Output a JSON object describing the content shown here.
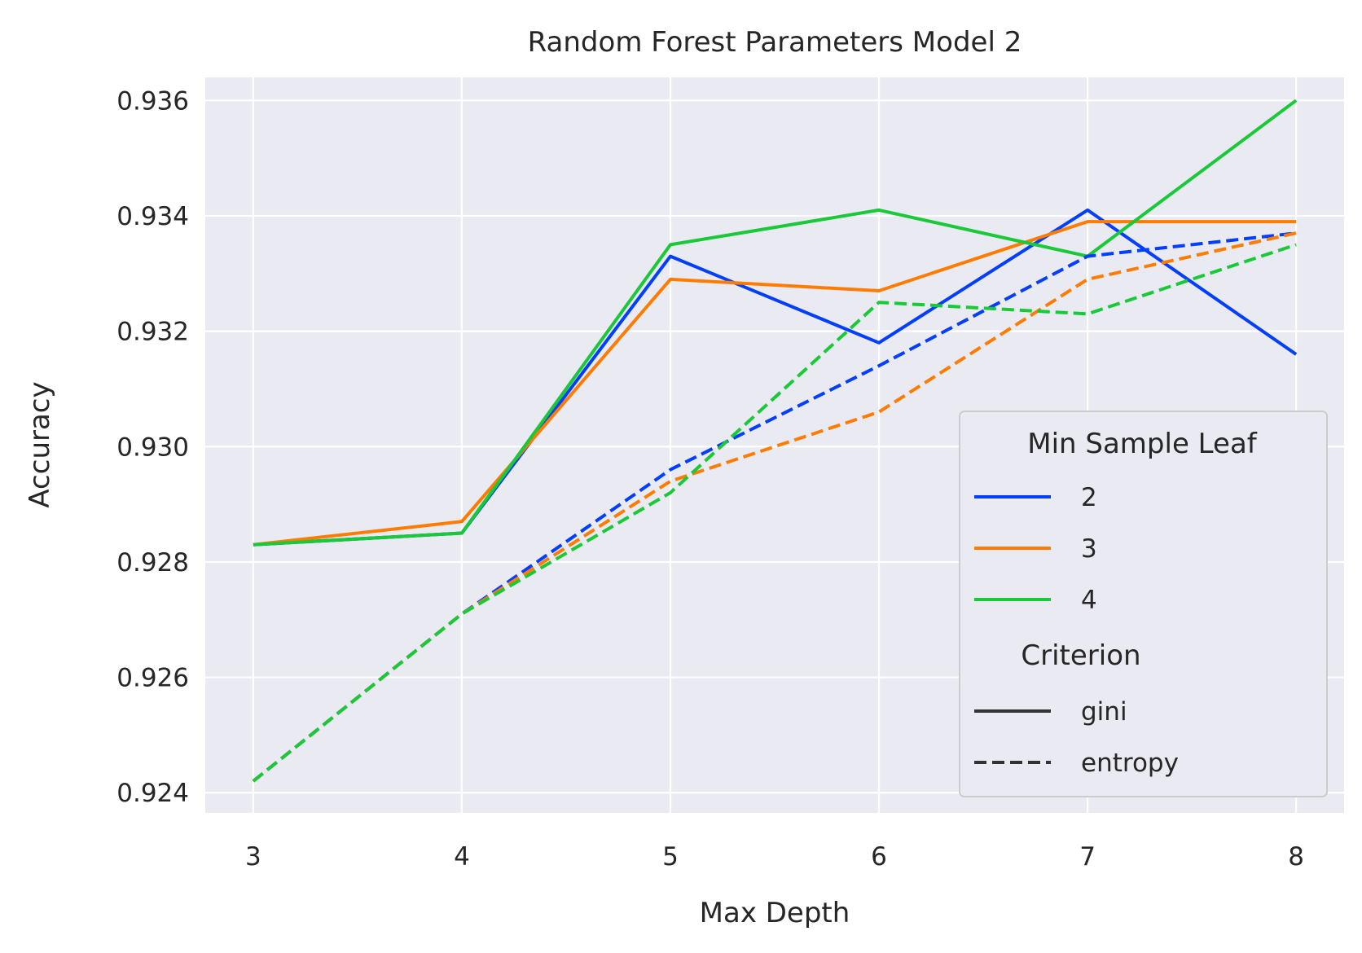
{
  "chart_data": {
    "type": "line",
    "title": "Random Forest Parameters Model 2",
    "xlabel": "Max Depth",
    "ylabel": "Accuracy",
    "x": [
      3,
      4,
      5,
      6,
      7,
      8
    ],
    "xlim": [
      2.77,
      8.23
    ],
    "ylim": [
      0.92365,
      0.9364
    ],
    "xticks": [
      3,
      4,
      5,
      6,
      7,
      8
    ],
    "yticks": [
      0.924,
      0.926,
      0.928,
      0.93,
      0.932,
      0.934,
      0.936
    ],
    "ytick_labels": [
      "0.924",
      "0.926",
      "0.928",
      "0.930",
      "0.932",
      "0.934",
      "0.936"
    ],
    "grid": true,
    "legend_position": "lower-right",
    "legend": {
      "hue_title": "Min Sample Leaf",
      "style_title": "Criterion",
      "hue_entries": [
        {
          "label": "2",
          "color": "#023eff"
        },
        {
          "label": "3",
          "color": "#ff7c00"
        },
        {
          "label": "4",
          "color": "#1ac938"
        }
      ],
      "style_entries": [
        {
          "label": "gini",
          "dash": "solid"
        },
        {
          "label": "entropy",
          "dash": "dashed"
        }
      ]
    },
    "series": [
      {
        "min_sample_leaf": "2",
        "criterion": "gini",
        "color": "#023eff",
        "dash": "solid",
        "values": [
          0.9283,
          0.9285,
          0.9333,
          0.9318,
          0.9341,
          0.9316
        ]
      },
      {
        "min_sample_leaf": "3",
        "criterion": "gini",
        "color": "#ff7c00",
        "dash": "solid",
        "values": [
          0.9283,
          0.9287,
          0.9329,
          0.9327,
          0.9339,
          0.9339
        ]
      },
      {
        "min_sample_leaf": "4",
        "criterion": "gini",
        "color": "#1ac938",
        "dash": "solid",
        "values": [
          0.9283,
          0.9285,
          0.9335,
          0.9341,
          0.9333,
          0.936
        ]
      },
      {
        "min_sample_leaf": "2",
        "criterion": "entropy",
        "color": "#023eff",
        "dash": "dashed",
        "values": [
          0.9242,
          0.9271,
          0.9296,
          0.9314,
          0.9333,
          0.9337
        ]
      },
      {
        "min_sample_leaf": "3",
        "criterion": "entropy",
        "color": "#ff7c00",
        "dash": "dashed",
        "values": [
          0.9242,
          0.9271,
          0.9294,
          0.9306,
          0.9329,
          0.9337
        ]
      },
      {
        "min_sample_leaf": "4",
        "criterion": "entropy",
        "color": "#1ac938",
        "dash": "dashed",
        "values": [
          0.9242,
          0.9271,
          0.9292,
          0.9325,
          0.9323,
          0.9335
        ]
      }
    ]
  }
}
